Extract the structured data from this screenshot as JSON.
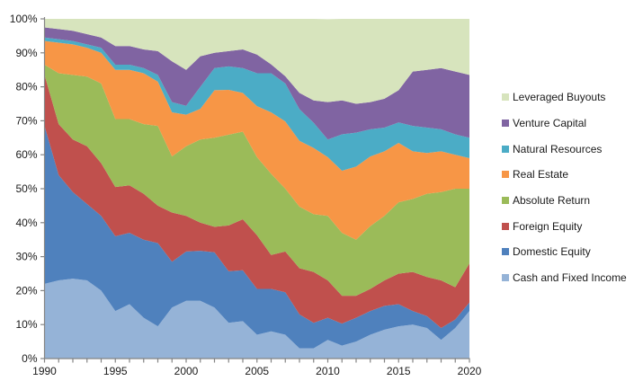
{
  "chart_data": {
    "type": "area",
    "stacking": "percent",
    "title": "",
    "xlabel": "",
    "ylabel": "",
    "x": [
      1990,
      1991,
      1992,
      1993,
      1994,
      1995,
      1996,
      1997,
      1998,
      1999,
      2000,
      2001,
      2002,
      2003,
      2004,
      2005,
      2006,
      2007,
      2008,
      2009,
      2010,
      2011,
      2012,
      2013,
      2014,
      2015,
      2016,
      2017,
      2018,
      2019,
      2020
    ],
    "x_major_ticks": [
      1990,
      1995,
      2000,
      2005,
      2010,
      2015,
      2020
    ],
    "y_ticks": [
      0,
      10,
      20,
      30,
      40,
      50,
      60,
      70,
      80,
      90,
      100
    ],
    "y_tick_labels": [
      "0%",
      "10%",
      "20%",
      "30%",
      "40%",
      "50%",
      "60%",
      "70%",
      "80%",
      "90%",
      "100%"
    ],
    "ylim": [
      0,
      100
    ],
    "grid": false,
    "legend_position": "right",
    "series": [
      {
        "name": "Cash and Fixed Income",
        "color": "#95B3D7",
        "values": [
          22,
          23,
          23.5,
          23,
          20,
          14,
          16,
          12,
          9.5,
          15,
          17,
          17,
          15,
          10.5,
          11,
          7,
          8,
          7,
          3,
          3,
          5.5,
          3.8,
          5,
          7,
          8.5,
          9.5,
          10,
          9,
          5.5,
          9,
          14
        ]
      },
      {
        "name": "Domestic Equity",
        "color": "#4F81BD",
        "values": [
          46.5,
          31,
          25.5,
          22.5,
          22,
          22,
          21,
          23,
          24.5,
          13.5,
          14.5,
          14.7,
          16.3,
          15.2,
          15,
          13.5,
          12.5,
          12.5,
          10,
          7.5,
          6.5,
          6.5,
          7,
          7,
          7,
          6.5,
          4,
          3.5,
          3.5,
          2.5,
          2.5
        ]
      },
      {
        "name": "Foreign Equity",
        "color": "#C0504D",
        "values": [
          15,
          15,
          15.5,
          17,
          15.5,
          14.5,
          14,
          13.5,
          11,
          14.5,
          10.5,
          8.3,
          7.5,
          13.5,
          15,
          15.8,
          10,
          12,
          13.6,
          15,
          11,
          8.2,
          6.5,
          6.5,
          7.5,
          9,
          11.5,
          11.5,
          14,
          9.5,
          11.5
        ]
      },
      {
        "name": "Absolute Return",
        "color": "#9BBB59",
        "values": [
          3,
          15,
          19,
          20.5,
          23.5,
          20,
          19.5,
          20.5,
          23.5,
          16.5,
          20.5,
          24.5,
          26.2,
          26.7,
          25.8,
          23,
          23.9,
          18.5,
          18.1,
          17,
          19,
          18.5,
          16.5,
          18.5,
          19,
          21,
          21.5,
          24.5,
          26,
          29,
          22
        ]
      },
      {
        "name": "Real Estate",
        "color": "#F79646",
        "values": [
          7,
          9,
          9,
          8.5,
          9,
          14.5,
          14.5,
          15,
          13,
          13,
          9.3,
          9,
          14,
          13.2,
          11.4,
          15,
          18.1,
          19.8,
          19.4,
          19.5,
          17.3,
          18.3,
          21.5,
          20.5,
          19,
          17.5,
          14,
          12,
          12,
          10,
          9
        ]
      },
      {
        "name": "Natural Resources",
        "color": "#4BACC6",
        "values": [
          1,
          1,
          1,
          1,
          1.5,
          1.5,
          1.5,
          1.5,
          2,
          3,
          2.6,
          6.5,
          6.5,
          6.9,
          7.3,
          9.7,
          11.5,
          11.2,
          9.3,
          7.4,
          5.2,
          10.7,
          10,
          8,
          7,
          6,
          7.5,
          7.5,
          6.5,
          6,
          6
        ]
      },
      {
        "name": "Venture Capital",
        "color": "#8064A2",
        "values": [
          3,
          3,
          3,
          3,
          3,
          5.5,
          5.5,
          5.5,
          7,
          12,
          10.6,
          9,
          4.5,
          4.5,
          5.5,
          5.5,
          2.6,
          2.1,
          4.8,
          6.6,
          11,
          10,
          8.5,
          8,
          8.5,
          9.5,
          16,
          17,
          18,
          18.5,
          18.5
        ]
      },
      {
        "name": "Leveraged Buyouts",
        "color": "#D7E4BD",
        "values": [
          2.5,
          3,
          3.5,
          4.5,
          5.5,
          8,
          8,
          9,
          9.5,
          12.5,
          15,
          11,
          10,
          9.5,
          9,
          10.5,
          13.4,
          16.9,
          21.8,
          24,
          24.4,
          24,
          25,
          24.5,
          23.5,
          21,
          15.5,
          15,
          14.5,
          15.5,
          16.5
        ]
      }
    ],
    "legend": [
      {
        "label": "Leveraged Buyouts",
        "color": "#D7E4BD"
      },
      {
        "label": "Venture Capital",
        "color": "#8064A2"
      },
      {
        "label": "Natural Resources",
        "color": "#4BACC6"
      },
      {
        "label": "Real Estate",
        "color": "#F79646"
      },
      {
        "label": "Absolute Return",
        "color": "#9BBB59"
      },
      {
        "label": "Foreign Equity",
        "color": "#C0504D"
      },
      {
        "label": "Domestic Equity",
        "color": "#4F81BD"
      },
      {
        "label": "Cash and Fixed Income",
        "color": "#95B3D7"
      }
    ],
    "axis_color": "#848484",
    "label_color": "#1a1a1a"
  }
}
